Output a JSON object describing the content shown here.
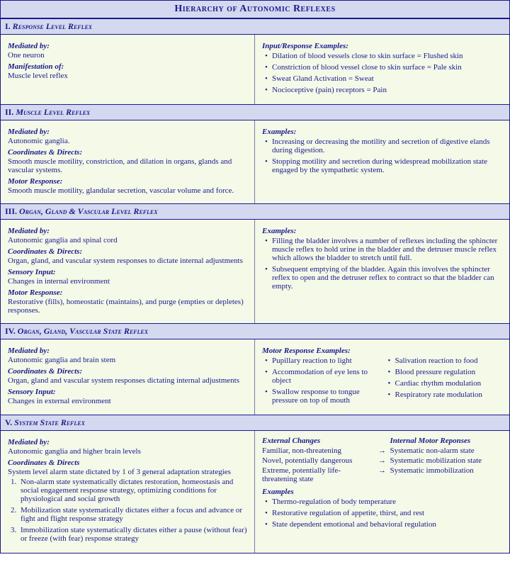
{
  "colors": {
    "header_bg": "#d5d9f0",
    "body_bg": "#f4f9e8",
    "border": "#1a1a8a",
    "text": "#1a1a8a"
  },
  "title": "Hierarchy of Autonomic Reflexes",
  "sections": [
    {
      "num": "I.",
      "name": "Response Level Reflex",
      "left": {
        "mediated_label": "Mediated by:",
        "mediated_text": "One neuron",
        "manifestation_label": "Manifestation of:",
        "manifestation_text": "Muscle level reflex"
      },
      "right": {
        "examples_label": "Input/Response Examples:",
        "bullets": [
          "Dilation of blood vessels close to skin surface = Flushed skin",
          "Constriction of blood vessel close to skin surface = Pale skin",
          "Sweat Gland Activation = Sweat",
          "Nocioceptive (pain) receptors  = Pain"
        ]
      }
    },
    {
      "num": "II.",
      "name": "Muscle Level Reflex",
      "left": {
        "mediated_label": "Mediated by:",
        "mediated_text": "Autonomic ganglia.",
        "coordinates_label": "Coordinates & Directs:",
        "coordinates_text": "Smooth muscle motility, constriction, and dilation in organs, glands and vascular systems.",
        "motor_label": "Motor Response:",
        "motor_text": "Smooth muscle motility, glandular secretion, vascular volume and force."
      },
      "right": {
        "examples_label": "Examples:",
        "bullets": [
          "Increasing or decreasing the motility and secretion of digestive elands during digestion.",
          "Stopping motility and secretion during widespread mobilization state engaged by the sympathetic system."
        ]
      }
    },
    {
      "num": "III.",
      "name": "Organ, Gland & Vascular Level Reflex",
      "left": {
        "mediated_label": "Mediated by:",
        "mediated_text": "Autonomic ganglia and spinal cord",
        "coordinates_label": "Coordinates & Directs:",
        "coordinates_text": "Organ, gland, and vascular system responses to dictate internal adjustments",
        "sensory_label": "Sensory Input:",
        "sensory_text": "Changes in internal environment",
        "motor_label": "Motor Response:",
        "motor_text": "Restorative (fills), homeostatic (maintains), and purge (empties or depletes) responses."
      },
      "right": {
        "examples_label": "Examples:",
        "bullets": [
          "Filling the bladder involves a number of reflexes including the sphincter muscle reflex to hold urine in the bladder and the detruser muscle reflex which allows the bladder to stretch until full.",
          "Subsequent emptying of the bladder. Again this involves the sphincter reflex to open and the detruser reflex to contract so that the bladder can empty."
        ]
      }
    },
    {
      "num": "IV.",
      "name": "Organ, Gland, Vascular State Reflex",
      "left": {
        "mediated_label": "Mediated by:",
        "mediated_text": "Autonomic ganglia and brain stem",
        "coordinates_label": "Coordinates & Directs:",
        "coordinates_text": "Organ, gland and vascular system responses dictating internal adjustments",
        "sensory_label": "Sensory Input:",
        "sensory_text": "Changes in external environment"
      },
      "right": {
        "examples_label": "Motor Response Examples:",
        "col1": [
          "Pupillary reaction to light",
          "Accommodation of eye lens to object",
          "Swallow response to tongue pressure on top of mouth"
        ],
        "col2": [
          "Salivation reaction to food",
          "Blood pressure regulation",
          "Cardiac rhythm modulation",
          "Respiratory rate modulation"
        ]
      }
    },
    {
      "num": "V.",
      "name": "System State Reflex",
      "left": {
        "mediated_label": "Mediated by:",
        "mediated_text": "Autonomic ganglia and higher brain levels",
        "coordinates_label": "Coordinates & Directs",
        "coordinates_text": "System level alarm state dictated by 1 of 3 general adaptation strategies",
        "strategies": [
          "Non-alarm state systematically dictates restoration, homeostasis and social engagement response strategy, optimizing conditions for physiological and social growth",
          "Mobilization state systematically dictates either a focus and advance or fight and flight response strategy",
          "Immobilization state systematically dictates either a pause (without fear) or freeze (with fear) response strategy"
        ]
      },
      "right": {
        "ext_label": "External Changes",
        "int_label": "Internal Motor Reponses",
        "rows": [
          {
            "ext": "Familiar, non-threatening",
            "int": "Systematic non-alarm state"
          },
          {
            "ext": "Novel, potentially dangerous",
            "int": "Systematic mobilization state"
          },
          {
            "ext": "Extreme, potentially life-threatening state",
            "int": "Systematic immobilization"
          }
        ],
        "examples_label": "Examples",
        "examples": [
          "Thermo-regulation of body temperature",
          "Restorative regulation of appetite, thirst, and rest",
          "State dependent emotional and behavioral regulation"
        ]
      }
    }
  ]
}
